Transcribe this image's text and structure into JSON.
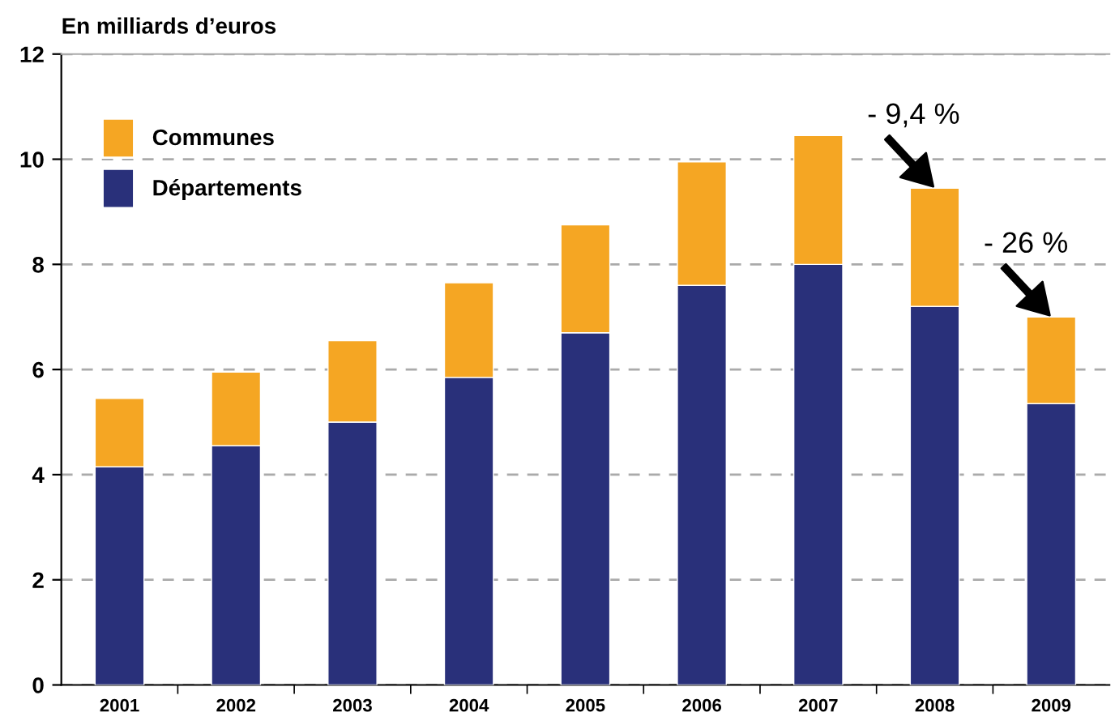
{
  "chart_data": {
    "type": "bar",
    "stacked": true,
    "ylabel": "En milliards d’euros",
    "categories": [
      "2001",
      "2002",
      "2003",
      "2004",
      "2005",
      "2006",
      "2007",
      "2008",
      "2009"
    ],
    "series": [
      {
        "name": "Départements",
        "color": "#29307a",
        "values": [
          4.15,
          4.55,
          5.0,
          5.85,
          6.7,
          7.6,
          8.0,
          7.2,
          5.35
        ]
      },
      {
        "name": "Communes",
        "color": "#f5a623",
        "values": [
          1.3,
          1.4,
          1.55,
          1.8,
          2.05,
          2.35,
          2.45,
          2.25,
          1.65
        ]
      }
    ],
    "ylim": [
      0,
      12
    ],
    "yticks": [
      0,
      2,
      4,
      6,
      8,
      10,
      12
    ],
    "grid": "y",
    "legend": "top left",
    "annotations": [
      {
        "text": "- 9,4 %",
        "x": "2008",
        "y": 9.45
      },
      {
        "text": "- 26 %",
        "x": "2009",
        "y": 7.0
      }
    ]
  }
}
